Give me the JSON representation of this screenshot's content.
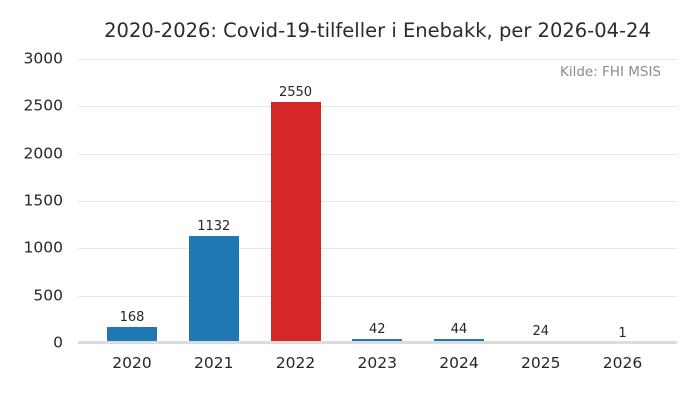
{
  "chart_data": {
    "type": "bar",
    "title": "2020-2026: Covid-19-tilfeller i Enebakk, per 2026-04-24",
    "annotation": "Kilde: FHI MSIS",
    "categories": [
      "2020",
      "2021",
      "2022",
      "2023",
      "2024",
      "2025",
      "2026"
    ],
    "values": [
      168,
      1132,
      2550,
      42,
      44,
      24,
      1
    ],
    "bar_labels": [
      "168",
      "1132",
      "2550",
      "42",
      "44",
      "24",
      "1"
    ],
    "bar_colors": [
      "#1f77b4",
      "#1f77b4",
      "#d62728",
      "#1f77b4",
      "#1f77b4",
      "#1f77b4",
      "#1f77b4"
    ],
    "xlabel": "",
    "ylabel": "",
    "ylim": [
      0,
      3000
    ],
    "yticks": [
      0,
      500,
      1000,
      1500,
      2000,
      2500,
      3000
    ],
    "grid": true,
    "legend": false,
    "colors": {
      "bar_default": "#1f77b4",
      "bar_highlight": "#d62728",
      "gridline": "#e7e7e7",
      "axis_line": "#dcdcdc",
      "tick_text": "#262626",
      "title_text": "#2b2b2b",
      "annotation_text": "#8c8c8c",
      "background": "#ffffff"
    }
  }
}
